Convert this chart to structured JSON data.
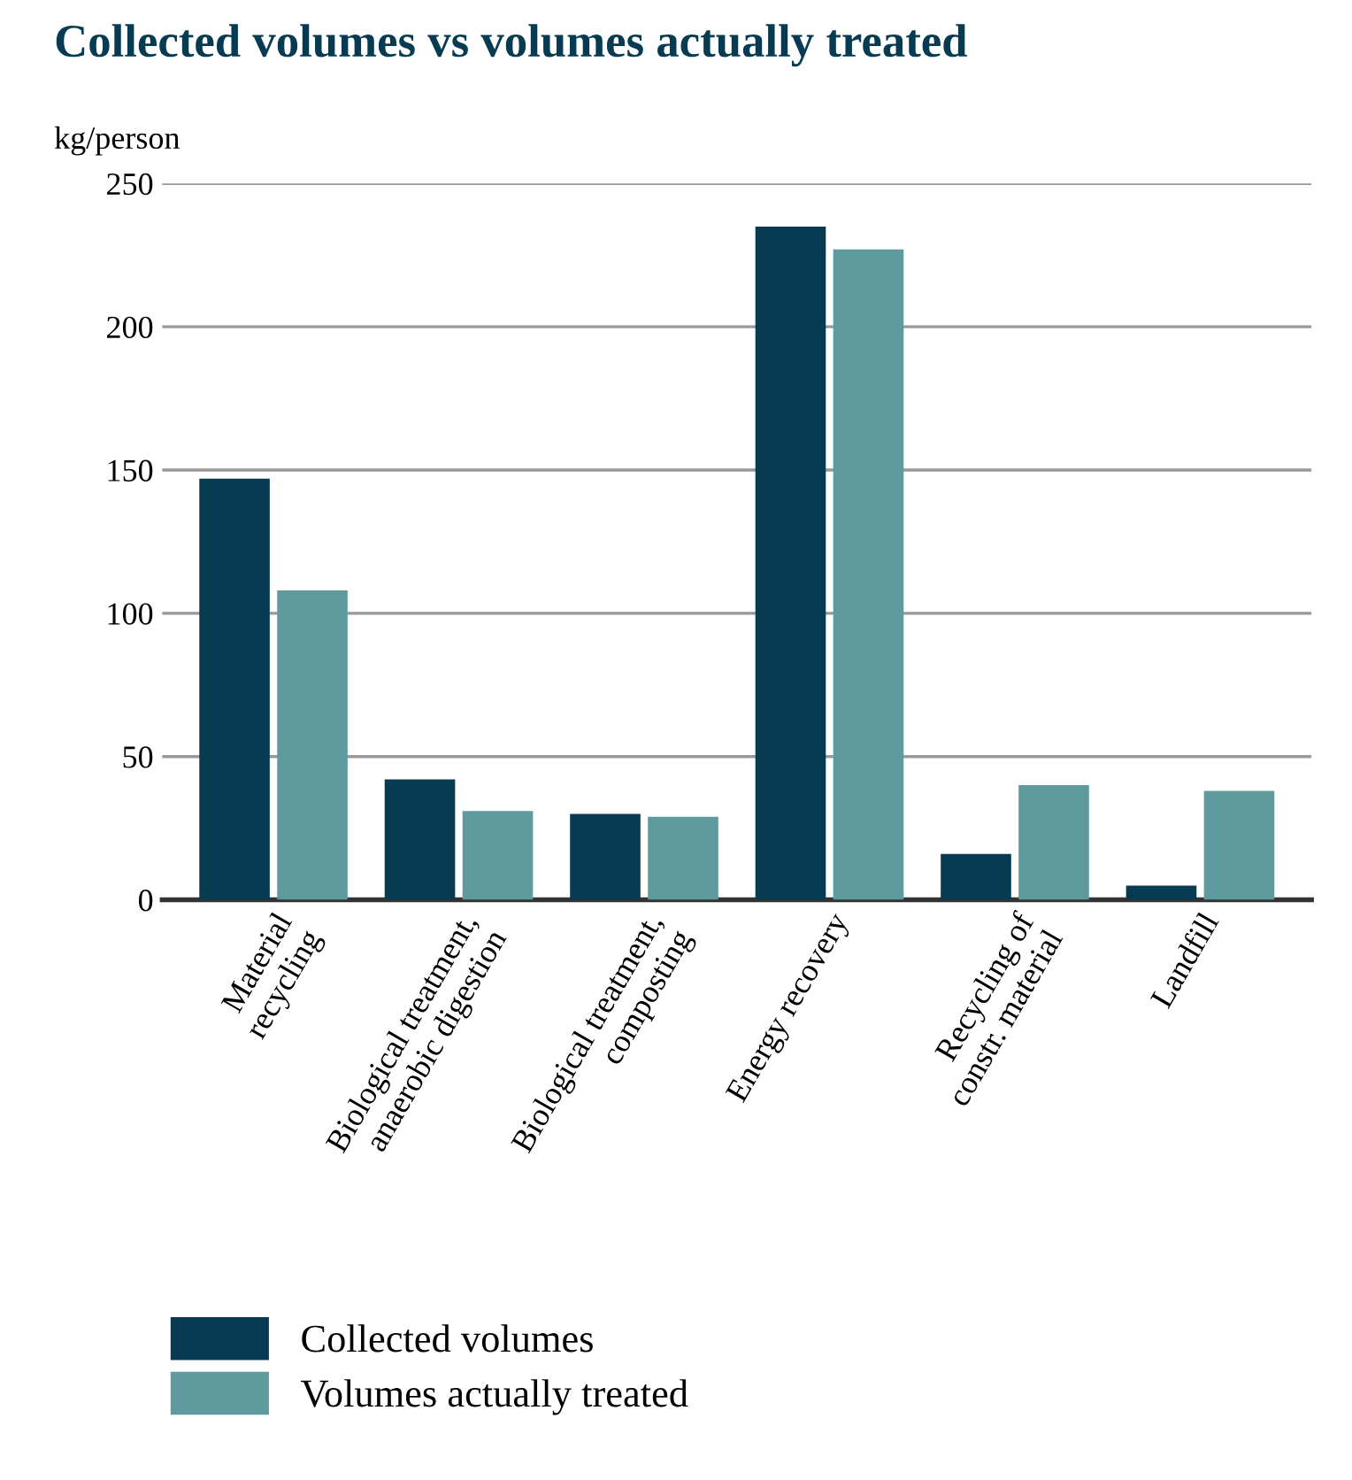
{
  "chart_data": {
    "type": "bar",
    "title": "Collected volumes vs volumes actually treated",
    "ylabel": "kg/person",
    "categories": [
      "Material\nrecycling",
      "Biological treatment,\nanaerobic digestion",
      "Biological treatment,\ncomposting",
      "Energy recovery",
      "Recycling of\nconstr. material",
      "Landfill"
    ],
    "series": [
      {
        "name": "Collected volumes",
        "color": "#073b52",
        "values": [
          147,
          42,
          30,
          235,
          16,
          5
        ]
      },
      {
        "name": "Volumes actually treated",
        "color": "#5e9a9e",
        "values": [
          108,
          31,
          29,
          227,
          40,
          38
        ]
      }
    ],
    "ylim": [
      0,
      250
    ],
    "yticks": [
      0,
      50,
      100,
      150,
      200,
      250
    ],
    "grid": "y",
    "legend": "bottom left"
  }
}
